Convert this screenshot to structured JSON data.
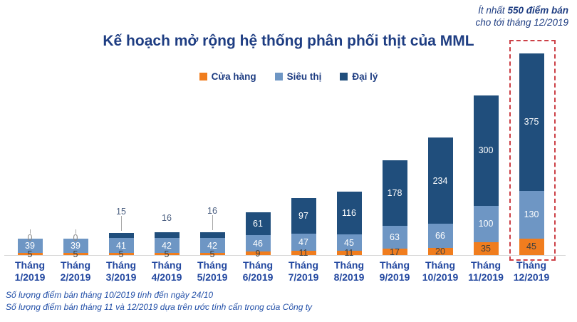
{
  "title": "Kế hoạch mở rộng hệ thống phân phối thịt của MML",
  "annotation": {
    "line1_prefix": "Ít nhất",
    "line1_bold": "550 điểm bán",
    "line2": "cho tới tháng 12/2019"
  },
  "legend": [
    {
      "label": "Cửa hàng",
      "color": "#F07D1E"
    },
    {
      "label": "Siêu thị",
      "color": "#6E96C4"
    },
    {
      "label": "Đại lý",
      "color": "#204E7C"
    }
  ],
  "chart_data": {
    "type": "bar",
    "stacked": true,
    "title": "Kế hoạch mở rộng hệ thống phân phối thịt của MML",
    "categories": [
      "Tháng 1/2019",
      "Tháng 2/2019",
      "Tháng 3/2019",
      "Tháng 4/2019",
      "Tháng 5/2019",
      "Tháng 6/2019",
      "Tháng 7/2019",
      "Tháng 8/2019",
      "Tháng 9/2019",
      "Tháng 10/2019",
      "Tháng 11/2019",
      "Tháng 12/2019"
    ],
    "series": [
      {
        "name": "Cửa hàng",
        "color": "#F07D1E",
        "values": [
          5,
          5,
          5,
          5,
          5,
          9,
          11,
          11,
          17,
          20,
          35,
          45
        ]
      },
      {
        "name": "Siêu thị",
        "color": "#6E96C4",
        "values": [
          39,
          39,
          41,
          42,
          42,
          46,
          47,
          45,
          63,
          66,
          100,
          130
        ]
      },
      {
        "name": "Đại lý",
        "color": "#204E7C",
        "values": [
          0,
          0,
          15,
          16,
          16,
          61,
          97,
          116,
          178,
          234,
          300,
          375
        ]
      }
    ],
    "totals": [
      44,
      44,
      61,
      63,
      63,
      116,
      155,
      172,
      258,
      320,
      435,
      550
    ],
    "ylim": [
      0,
      550
    ],
    "grid": false,
    "legend_position": "top",
    "highlight_category": "Tháng 12/2019"
  },
  "footnotes": [
    "Số lượng điểm bán tháng 10/2019 tính đến ngày 24/10",
    "Số lượng điểm bán tháng 11 và 12/2019 dựa trên ước tính cẩn trọng của Công ty"
  ],
  "colors": {
    "orange": "#F07D1E",
    "light_blue": "#6E96C4",
    "navy": "#204E7C",
    "title_blue": "#1E3D82",
    "axis_label_blue": "#2348A0",
    "footnote_blue": "#2350A8",
    "highlight_red": "#CC4046",
    "axis_line_gray": "#D6D6D6",
    "leader_gray": "#A6A6A6",
    "label_dark": "#3F3F3F"
  }
}
